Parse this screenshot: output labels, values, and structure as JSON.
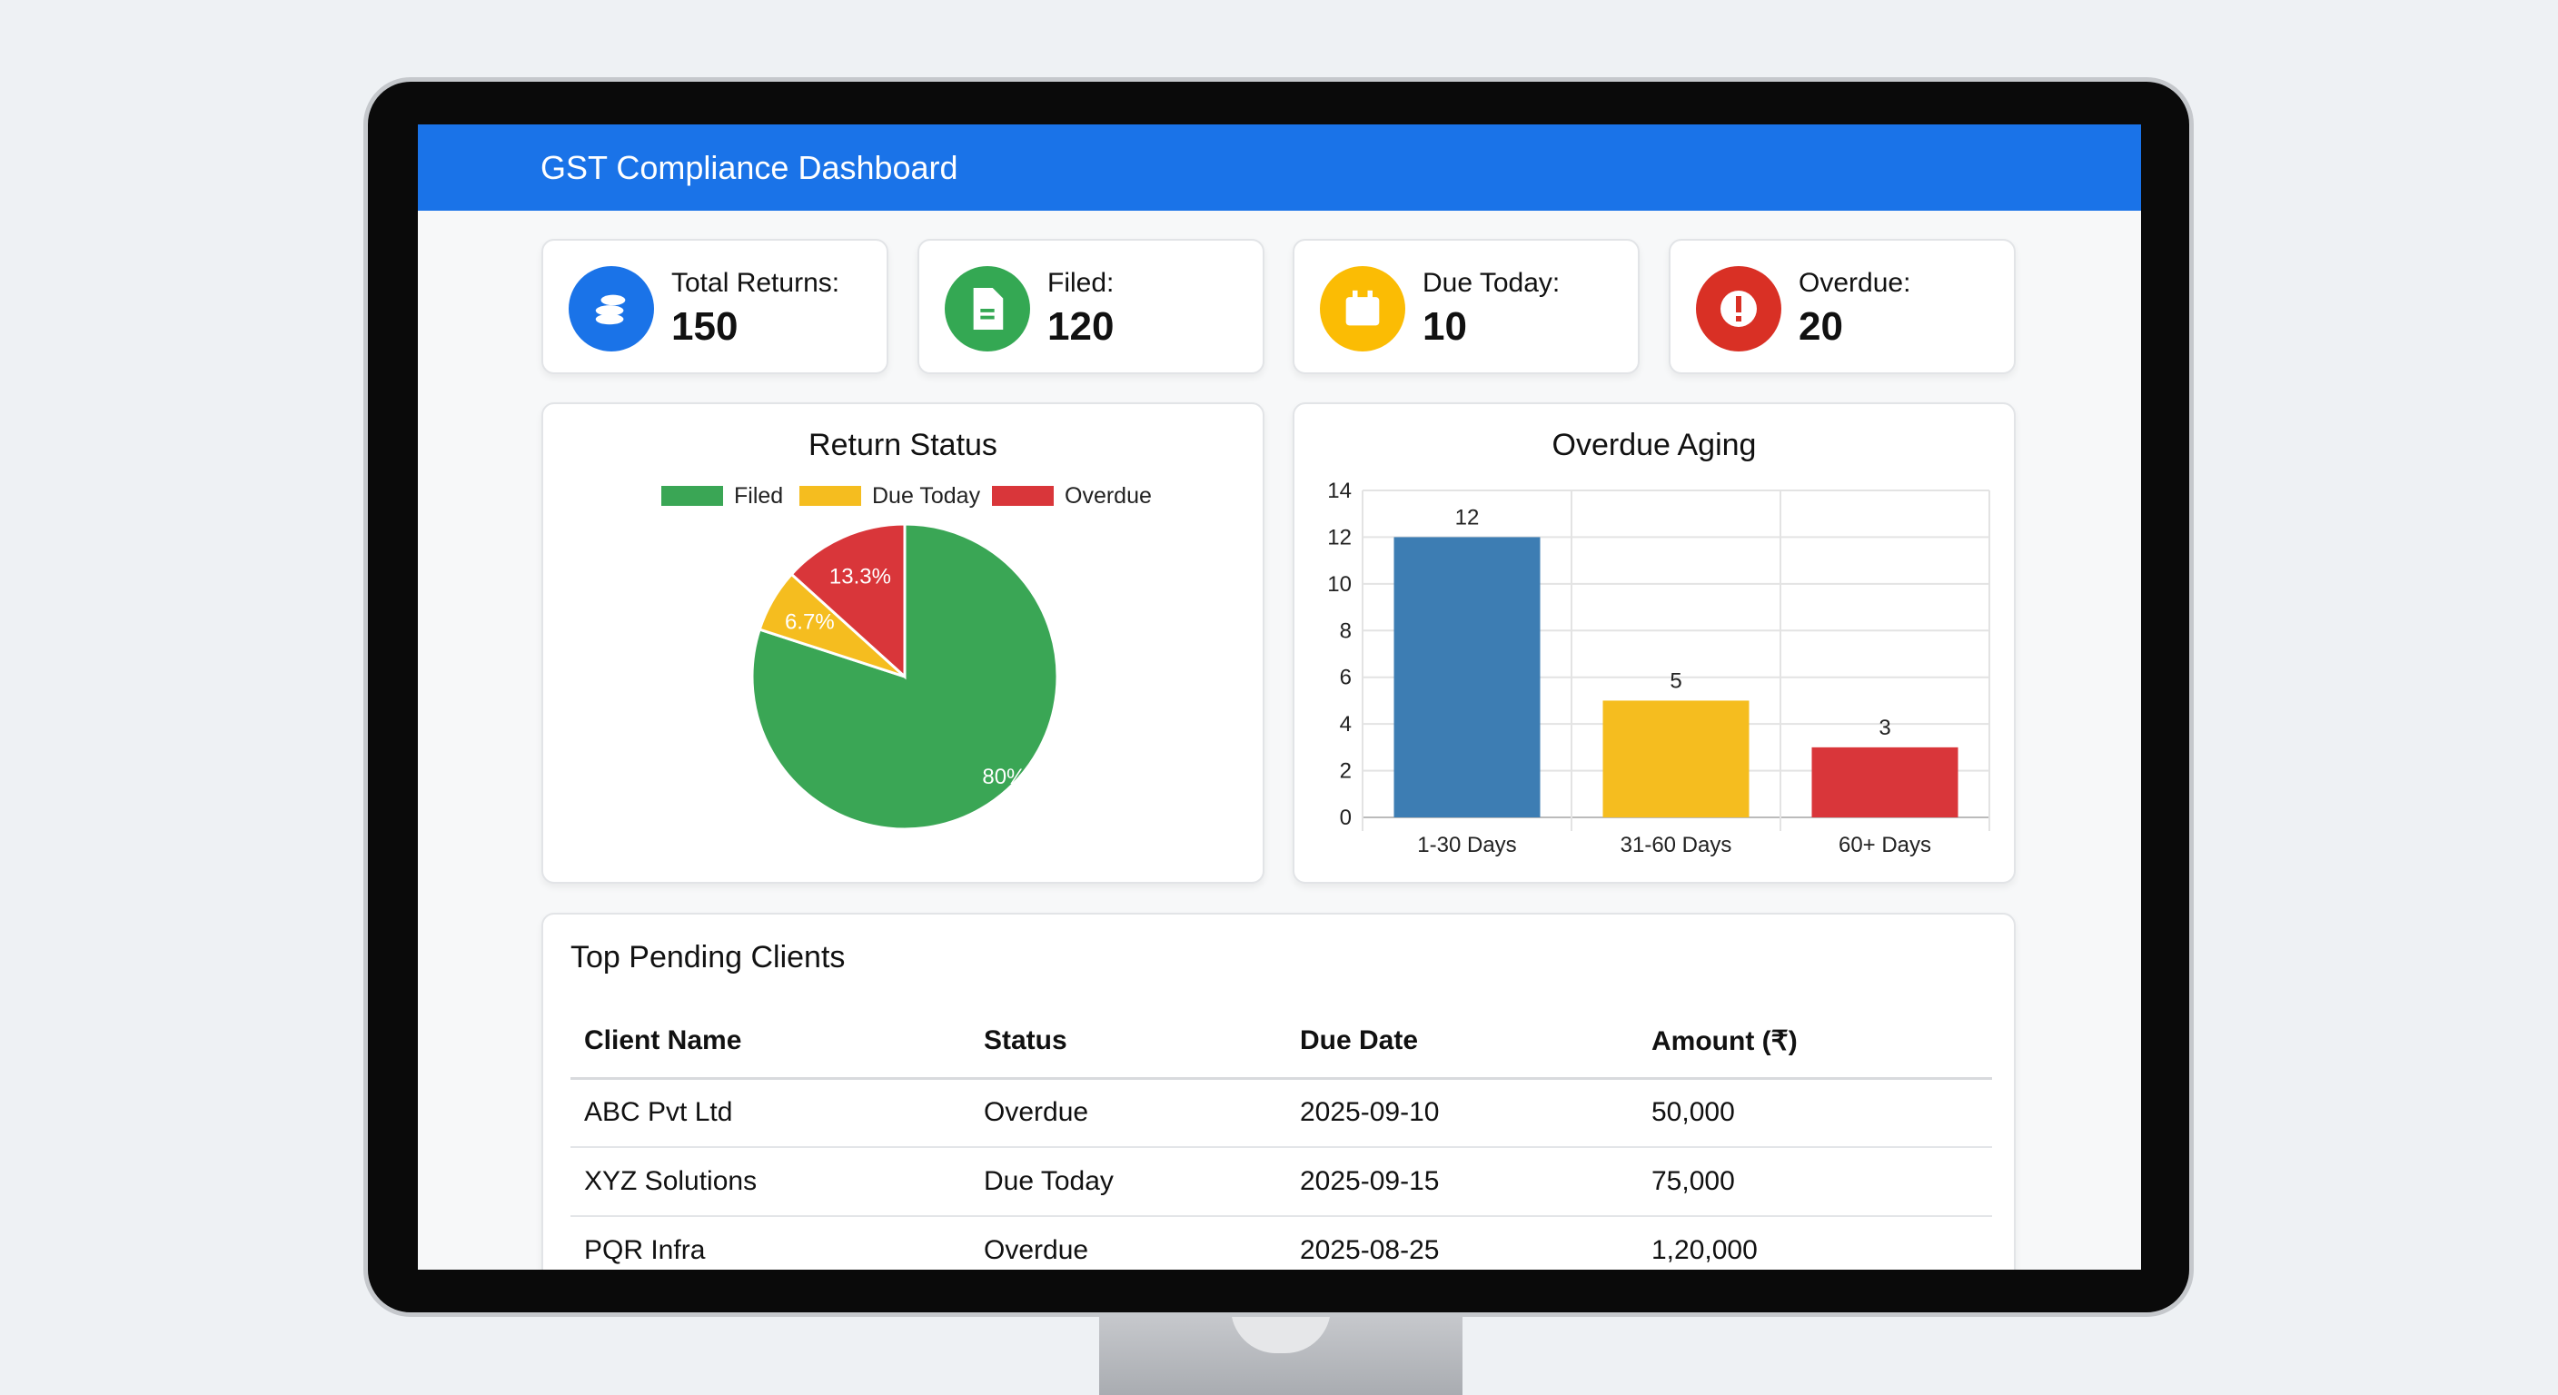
{
  "header": {
    "title": "GST Compliance Dashboard"
  },
  "cards": [
    {
      "label": "Total Returns:",
      "value": "150",
      "icon": "coins-icon",
      "color": "#1a73e8"
    },
    {
      "label": "Filed:",
      "value": "120",
      "icon": "document-icon",
      "color": "#34a853"
    },
    {
      "label": "Due Today:",
      "value": "10",
      "icon": "calendar-icon",
      "color": "#fbbc04"
    },
    {
      "label": "Overdue:",
      "value": "20",
      "icon": "alert-icon",
      "color": "#d93025"
    }
  ],
  "chart_data": [
    {
      "type": "pie",
      "title": "Return Status",
      "legend": [
        "Filed",
        "Due Today",
        "Overdue"
      ],
      "legend_position": "top",
      "values": [
        80,
        6.7,
        13.3
      ],
      "labels": [
        "80%",
        "6.7%",
        "13.3%"
      ],
      "colors": [
        "#3aa655",
        "#f5bd1f",
        "#d9363a"
      ]
    },
    {
      "type": "bar",
      "title": "Overdue Aging",
      "categories": [
        "1-30 Days",
        "31-60 Days",
        "60+ Days"
      ],
      "values": [
        12,
        5,
        3
      ],
      "ylim": [
        0,
        14
      ],
      "yticks": [
        "0",
        "2",
        "4",
        "6",
        "8",
        "10",
        "12",
        "14"
      ],
      "grid": true,
      "colors": [
        "#3d7db3",
        "#f5bd1f",
        "#d9363a"
      ]
    }
  ],
  "table": {
    "title": "Top Pending Clients",
    "headers": [
      "Client Name",
      "Status",
      "Due Date",
      "Amount (₹)"
    ],
    "rows": [
      [
        "ABC Pvt Ltd",
        "Overdue",
        "2025-09-10",
        "50,000"
      ],
      [
        "XYZ Solutions",
        "Due Today",
        "2025-09-15",
        "75,000"
      ],
      [
        "PQR Infra",
        "Overdue",
        "2025-08-25",
        "1,20,000"
      ]
    ]
  }
}
